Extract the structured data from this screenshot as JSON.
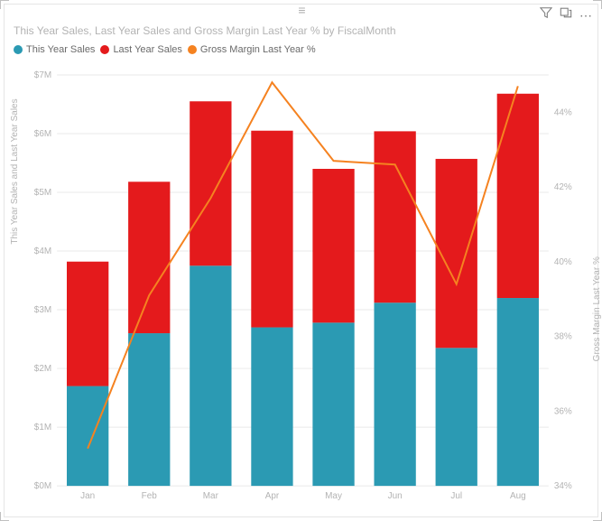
{
  "title": "This Year Sales, Last Year Sales and Gross Margin Last Year % by FiscalMonth",
  "legend": {
    "series1": {
      "label": "This Year Sales",
      "color": "#2b9ab3"
    },
    "series2": {
      "label": "Last Year Sales",
      "color": "#e41a1c"
    },
    "series3": {
      "label": "Gross Margin Last Year %",
      "color": "#f58220"
    }
  },
  "axes": {
    "leftLabel": "This Year Sales and Last Year Sales",
    "rightLabel": "Gross Margin Last Year %",
    "leftTicks": [
      "$0M",
      "$1M",
      "$2M",
      "$3M",
      "$4M",
      "$5M",
      "$6M",
      "$7M"
    ],
    "leftMin": 0,
    "leftMax": 7,
    "rightTicks": [
      "34%",
      "36%",
      "38%",
      "40%",
      "42%",
      "44%"
    ],
    "rightMin": 34,
    "rightMax": 45,
    "categories": [
      "Jan",
      "Feb",
      "Mar",
      "Apr",
      "May",
      "Jun",
      "Jul",
      "Aug"
    ]
  },
  "chart": {
    "type": "stacked-bar-with-line",
    "bar_width_ratio": 0.68,
    "grid_color": "#eaeaea",
    "tick_color": "#b3b3b3",
    "tick_fontsize": 10,
    "background": "#ffffff",
    "thisYear": [
      1.7,
      2.6,
      3.75,
      2.7,
      2.78,
      3.12,
      2.35,
      3.2
    ],
    "lastYear": [
      2.12,
      2.58,
      2.8,
      3.35,
      2.62,
      2.92,
      3.22,
      3.48
    ],
    "marginPct": [
      35.0,
      39.1,
      41.7,
      44.8,
      42.7,
      42.6,
      39.4,
      44.7
    ],
    "line_color": "#f58220",
    "line_width": 2
  },
  "colors": {
    "border": "#e6e6e6",
    "titleText": "#b3b3b3"
  }
}
